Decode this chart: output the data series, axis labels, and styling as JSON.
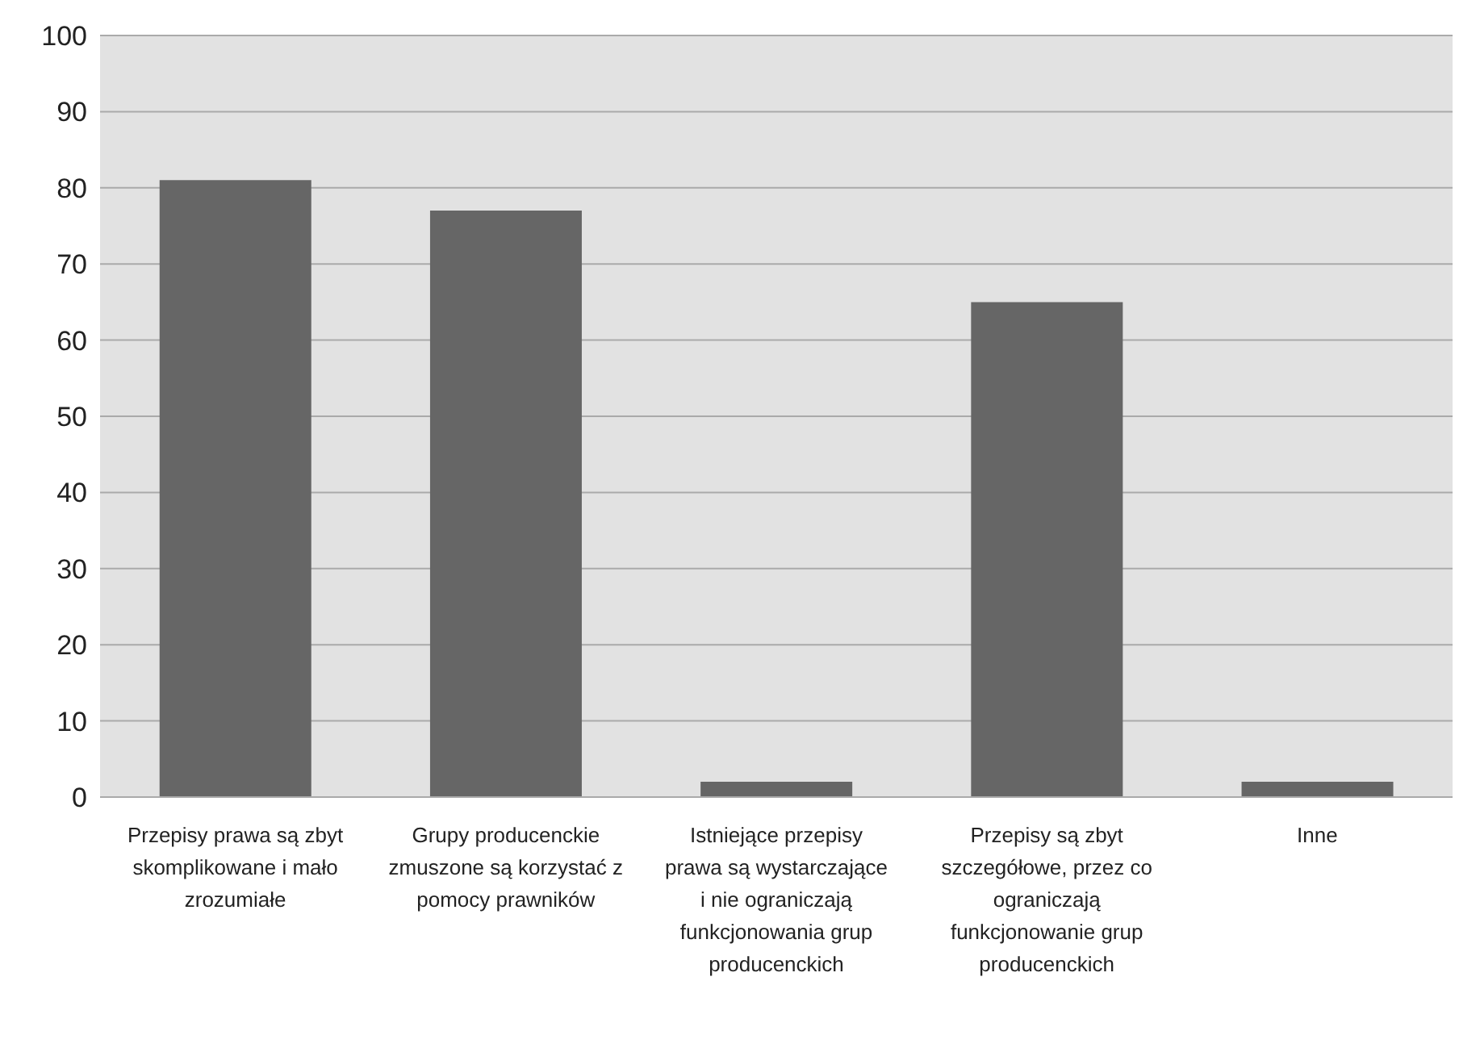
{
  "chart_data": {
    "type": "bar",
    "categories": [
      "Przepisy prawa są zbyt skomplikowane i mało zrozumiałe",
      "Grupy producenckie zmuszone są korzystać z pomocy prawników",
      "Istniejące przepisy prawa są wystarczające i nie ograniczają funkcjonowania grup producenckich",
      "Przepisy są zbyt szczegółowe, przez co ograniczają funkcjonowanie grup producenckich",
      "Inne"
    ],
    "values": [
      81,
      77,
      2,
      65,
      2
    ],
    "color": "#666666",
    "ylim": [
      0,
      100
    ],
    "yticks": [
      0,
      10,
      20,
      30,
      40,
      50,
      60,
      70,
      80,
      90,
      100
    ],
    "grid": "y"
  }
}
